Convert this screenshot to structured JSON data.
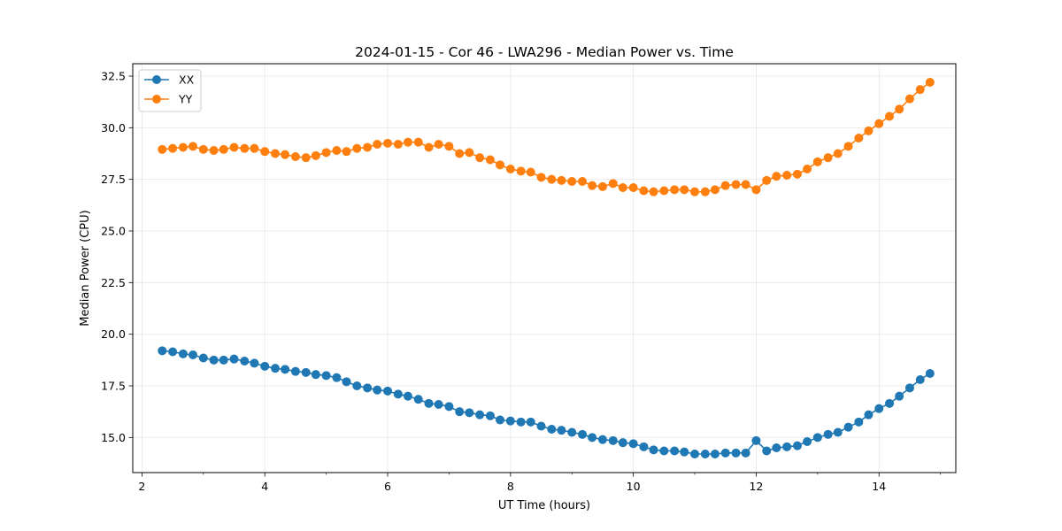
{
  "chart_data": {
    "type": "line",
    "title": "2024-01-15 - Cor 46 - LWA296 - Median Power vs. Time",
    "xlabel": "UT Time (hours)",
    "ylabel": "Median Power (CPU)",
    "xlim": [
      1.85,
      15.25
    ],
    "ylim": [
      13.3,
      33.1
    ],
    "xticks": [
      2,
      4,
      6,
      8,
      10,
      12,
      14
    ],
    "yticks": [
      15.0,
      17.5,
      20.0,
      22.5,
      25.0,
      27.5,
      30.0,
      32.5
    ],
    "grid": true,
    "legend_position": "top-left",
    "x": [
      2.33,
      2.5,
      2.67,
      2.83,
      3.0,
      3.17,
      3.33,
      3.5,
      3.67,
      3.83,
      4.0,
      4.17,
      4.33,
      4.5,
      4.67,
      4.83,
      5.0,
      5.17,
      5.33,
      5.5,
      5.67,
      5.83,
      6.0,
      6.17,
      6.33,
      6.5,
      6.67,
      6.83,
      7.0,
      7.17,
      7.33,
      7.5,
      7.67,
      7.83,
      8.0,
      8.17,
      8.33,
      8.5,
      8.67,
      8.83,
      9.0,
      9.17,
      9.33,
      9.5,
      9.67,
      9.83,
      10.0,
      10.17,
      10.33,
      10.5,
      10.67,
      10.83,
      11.0,
      11.17,
      11.33,
      11.5,
      11.67,
      11.83,
      12.0,
      12.17,
      12.33,
      12.5,
      12.67,
      12.83,
      13.0,
      13.17,
      13.33,
      13.5,
      13.67,
      13.83,
      14.0,
      14.17,
      14.33,
      14.5,
      14.67,
      14.83
    ],
    "series": [
      {
        "name": "XX",
        "color": "#1f77b4",
        "values": [
          19.2,
          19.15,
          19.05,
          19.0,
          18.85,
          18.75,
          18.75,
          18.8,
          18.7,
          18.6,
          18.45,
          18.35,
          18.3,
          18.2,
          18.15,
          18.05,
          18.0,
          17.9,
          17.7,
          17.5,
          17.4,
          17.3,
          17.25,
          17.1,
          17.0,
          16.85,
          16.65,
          16.6,
          16.5,
          16.25,
          16.2,
          16.1,
          16.05,
          15.85,
          15.8,
          15.75,
          15.75,
          15.55,
          15.4,
          15.35,
          15.25,
          15.15,
          15.0,
          14.9,
          14.85,
          14.75,
          14.7,
          14.55,
          14.4,
          14.35,
          14.35,
          14.3,
          14.2,
          14.2,
          14.2,
          14.25,
          14.25,
          14.25,
          14.85,
          14.35,
          14.5,
          14.55,
          14.6,
          14.8,
          15.0,
          15.15,
          15.25,
          15.5,
          15.75,
          16.1,
          16.4,
          16.65,
          17.0,
          17.4,
          17.8,
          18.1
        ]
      },
      {
        "name": "YY",
        "color": "#ff7f0e",
        "values": [
          28.95,
          29.0,
          29.05,
          29.1,
          28.95,
          28.9,
          28.95,
          29.05,
          29.0,
          29.0,
          28.85,
          28.75,
          28.7,
          28.6,
          28.55,
          28.65,
          28.8,
          28.9,
          28.85,
          29.0,
          29.05,
          29.2,
          29.25,
          29.2,
          29.3,
          29.3,
          29.05,
          29.2,
          29.1,
          28.75,
          28.8,
          28.55,
          28.45,
          28.2,
          28.0,
          27.9,
          27.85,
          27.6,
          27.5,
          27.45,
          27.4,
          27.4,
          27.2,
          27.15,
          27.3,
          27.1,
          27.1,
          26.95,
          26.9,
          26.95,
          27.0,
          27.0,
          26.9,
          26.9,
          27.0,
          27.2,
          27.25,
          27.25,
          27.0,
          27.45,
          27.65,
          27.7,
          27.75,
          28.0,
          28.35,
          28.55,
          28.75,
          29.1,
          29.5,
          29.85,
          30.2,
          30.55,
          30.9,
          31.4,
          31.85,
          32.2
        ]
      }
    ]
  }
}
